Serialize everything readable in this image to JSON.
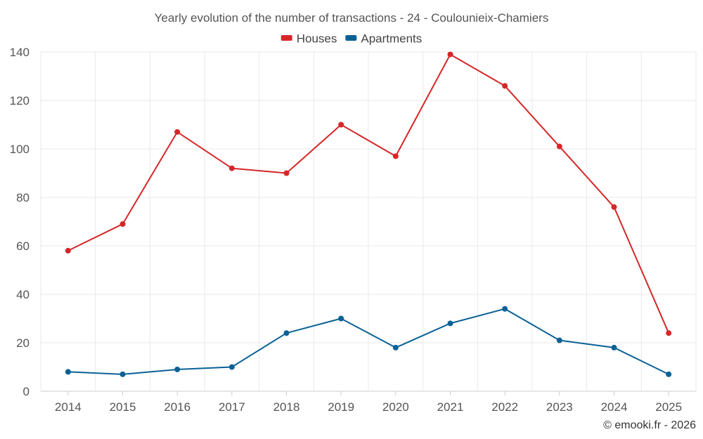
{
  "chart_data": {
    "type": "line",
    "title": "Yearly evolution of the number of transactions - 24 - Coulounieix-Chamiers",
    "categories": [
      "2014",
      "2015",
      "2016",
      "2017",
      "2018",
      "2019",
      "2020",
      "2021",
      "2022",
      "2023",
      "2024",
      "2025"
    ],
    "series": [
      {
        "name": "Houses",
        "color": "#d62728",
        "values": [
          58,
          69,
          107,
          92,
          90,
          110,
          97,
          139,
          126,
          101,
          76,
          24
        ]
      },
      {
        "name": "Apartments",
        "color": "#0b6196",
        "values": [
          8,
          7,
          9,
          10,
          24,
          30,
          18,
          28,
          34,
          21,
          18,
          7
        ]
      }
    ],
    "ylim": [
      0,
      140
    ],
    "yticks": [
      0,
      20,
      40,
      60,
      80,
      100,
      120,
      140
    ],
    "xlabel": "",
    "ylabel": "",
    "legend_position": "top-center",
    "grid": true
  },
  "credit": "© emooki.fr - 2026"
}
